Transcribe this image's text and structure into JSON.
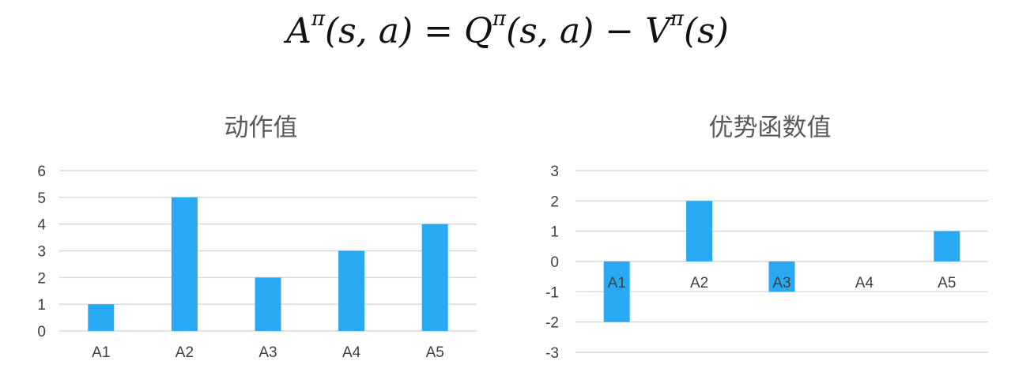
{
  "formula": "Aπ(s, a) = Qπ(s, a) − Vπ(s)",
  "colors": {
    "bar": "#29a9f4",
    "grid": "#d9d9d9",
    "text": "#404040",
    "title": "#595959"
  },
  "chart_data": [
    {
      "type": "bar",
      "title": "动作值",
      "categories": [
        "A1",
        "A2",
        "A3",
        "A4",
        "A5"
      ],
      "values": [
        1,
        5,
        2,
        3,
        4
      ],
      "ylim": [
        0,
        6
      ],
      "yticks": [
        0,
        1,
        2,
        3,
        4,
        5,
        6
      ],
      "grid": true,
      "legend": "none"
    },
    {
      "type": "bar",
      "title": "优势函数值",
      "categories": [
        "A1",
        "A2",
        "A3",
        "A4",
        "A5"
      ],
      "values": [
        -2,
        2,
        -1,
        0,
        1
      ],
      "ylim": [
        -3,
        3
      ],
      "yticks": [
        -3,
        -2,
        -1,
        0,
        1,
        2,
        3
      ],
      "grid": true,
      "legend": "none"
    }
  ]
}
